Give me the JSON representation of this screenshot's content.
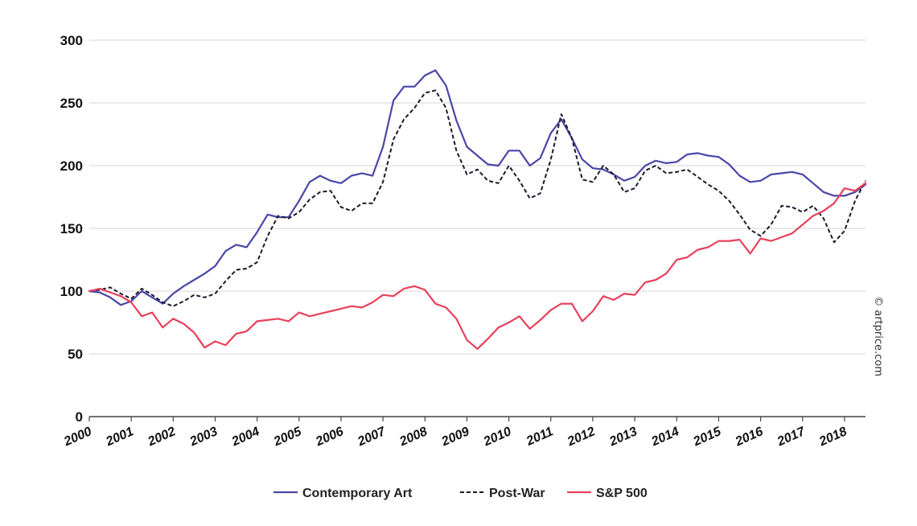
{
  "chart_data": {
    "type": "line",
    "title": "",
    "xlabel": "",
    "ylabel": "",
    "xlim": [
      2000,
      2018.5
    ],
    "ylim": [
      0,
      300
    ],
    "yticks": [
      0,
      50,
      100,
      150,
      200,
      250,
      300
    ],
    "xtick_labels": [
      "2000",
      "2001",
      "2002",
      "2003",
      "2004",
      "2005",
      "2006",
      "2007",
      "2008",
      "2009",
      "2010",
      "2011",
      "2012",
      "2013",
      "2014",
      "2015",
      "2016",
      "2017",
      "2018"
    ],
    "grid": "horizontal",
    "legend_position": "bottom-center",
    "credit": "© artprice.com",
    "series": [
      {
        "name": "Contemporary Art",
        "color": "#4a47a8",
        "style": "solid",
        "x": [
          2000,
          2000.25,
          2000.5,
          2000.75,
          2001,
          2001.25,
          2001.5,
          2001.75,
          2002,
          2002.25,
          2002.5,
          2002.75,
          2003,
          2003.25,
          2003.5,
          2003.75,
          2004,
          2004.25,
          2004.5,
          2004.75,
          2005,
          2005.25,
          2005.5,
          2005.75,
          2006,
          2006.25,
          2006.5,
          2006.75,
          2007,
          2007.25,
          2007.5,
          2007.75,
          2008,
          2008.25,
          2008.5,
          2008.75,
          2009,
          2009.25,
          2009.5,
          2009.75,
          2010,
          2010.25,
          2010.5,
          2010.75,
          2011,
          2011.25,
          2011.5,
          2011.75,
          2012,
          2012.25,
          2012.5,
          2012.75,
          2013,
          2013.25,
          2013.5,
          2013.75,
          2014,
          2014.25,
          2014.5,
          2014.75,
          2015,
          2015.25,
          2015.5,
          2015.75,
          2016,
          2016.25,
          2016.5,
          2016.75,
          2017,
          2017.25,
          2017.5,
          2017.75,
          2018,
          2018.25,
          2018.5
        ],
        "values": [
          100,
          99,
          95,
          89,
          92,
          100,
          95,
          90,
          98,
          104,
          109,
          114,
          120,
          132,
          137,
          135,
          147,
          161,
          159,
          159,
          172,
          187,
          192,
          188,
          186,
          192,
          194,
          192,
          215,
          252,
          263,
          263,
          272,
          276,
          264,
          236,
          215,
          208,
          201,
          200,
          212,
          212,
          200,
          206,
          226,
          237,
          222,
          205,
          198,
          197,
          193,
          188,
          191,
          200,
          204,
          202,
          203,
          209,
          210,
          208,
          207,
          201,
          192,
          187,
          188,
          193,
          194,
          195,
          193,
          186,
          179,
          176,
          176,
          179,
          185
        ]
      },
      {
        "name": "Post-War",
        "color": "#1a1a2e",
        "style": "dashed",
        "x": [
          2000,
          2000.25,
          2000.5,
          2000.75,
          2001,
          2001.25,
          2001.5,
          2001.75,
          2002,
          2002.25,
          2002.5,
          2002.75,
          2003,
          2003.25,
          2003.5,
          2003.75,
          2004,
          2004.25,
          2004.5,
          2004.75,
          2005,
          2005.25,
          2005.5,
          2005.75,
          2006,
          2006.25,
          2006.5,
          2006.75,
          2007,
          2007.25,
          2007.5,
          2007.75,
          2008,
          2008.25,
          2008.5,
          2008.75,
          2009,
          2009.25,
          2009.5,
          2009.75,
          2010,
          2010.25,
          2010.5,
          2010.75,
          2011,
          2011.25,
          2011.5,
          2011.75,
          2012,
          2012.25,
          2012.5,
          2012.75,
          2013,
          2013.25,
          2013.5,
          2013.75,
          2014,
          2014.25,
          2014.5,
          2014.75,
          2015,
          2015.25,
          2015.5,
          2015.75,
          2016,
          2016.25,
          2016.5,
          2016.75,
          2017,
          2017.25,
          2017.5,
          2017.75,
          2018,
          2018.25,
          2018.5
        ],
        "values": [
          100,
          101,
          103,
          98,
          94,
          102,
          97,
          91,
          88,
          92,
          97,
          95,
          98,
          108,
          117,
          118,
          123,
          144,
          160,
          158,
          163,
          173,
          179,
          180,
          167,
          164,
          170,
          170,
          187,
          221,
          237,
          246,
          258,
          260,
          246,
          212,
          193,
          197,
          188,
          186,
          200,
          188,
          174,
          178,
          205,
          241,
          222,
          189,
          187,
          200,
          193,
          179,
          182,
          196,
          200,
          194,
          195,
          197,
          191,
          185,
          180,
          172,
          161,
          149,
          144,
          153,
          168,
          167,
          163,
          168,
          158,
          139,
          148,
          172,
          188
        ]
      },
      {
        "name": "S&P 500",
        "color": "#e8405a",
        "style": "solid",
        "x": [
          2000,
          2000.25,
          2000.5,
          2000.75,
          2001,
          2001.25,
          2001.5,
          2001.75,
          2002,
          2002.25,
          2002.5,
          2002.75,
          2003,
          2003.25,
          2003.5,
          2003.75,
          2004,
          2004.25,
          2004.5,
          2004.75,
          2005,
          2005.25,
          2005.5,
          2005.75,
          2006,
          2006.25,
          2006.5,
          2006.75,
          2007,
          2007.25,
          2007.5,
          2007.75,
          2008,
          2008.25,
          2008.5,
          2008.75,
          2009,
          2009.25,
          2009.5,
          2009.75,
          2010,
          2010.25,
          2010.5,
          2010.75,
          2011,
          2011.25,
          2011.5,
          2011.75,
          2012,
          2012.25,
          2012.5,
          2012.75,
          2013,
          2013.25,
          2013.5,
          2013.75,
          2014,
          2014.25,
          2014.5,
          2014.75,
          2015,
          2015.25,
          2015.5,
          2015.75,
          2016,
          2016.25,
          2016.5,
          2016.75,
          2017,
          2017.25,
          2017.5,
          2017.75,
          2018,
          2018.25,
          2018.5
        ],
        "values": [
          100,
          102,
          99,
          96,
          91,
          80,
          83,
          71,
          78,
          74,
          67,
          55,
          60,
          57,
          66,
          68,
          76,
          77,
          78,
          76,
          83,
          80,
          82,
          84,
          86,
          88,
          87,
          91,
          97,
          96,
          102,
          104,
          101,
          90,
          87,
          78,
          61,
          54,
          62,
          71,
          75,
          80,
          70,
          77,
          85,
          90,
          90,
          76,
          84,
          96,
          93,
          98,
          97,
          107,
          109,
          114,
          125,
          127,
          133,
          135,
          140,
          140,
          141,
          130,
          142,
          140,
          143,
          146,
          153,
          160,
          164,
          170,
          182,
          180,
          186
        ]
      }
    ]
  }
}
